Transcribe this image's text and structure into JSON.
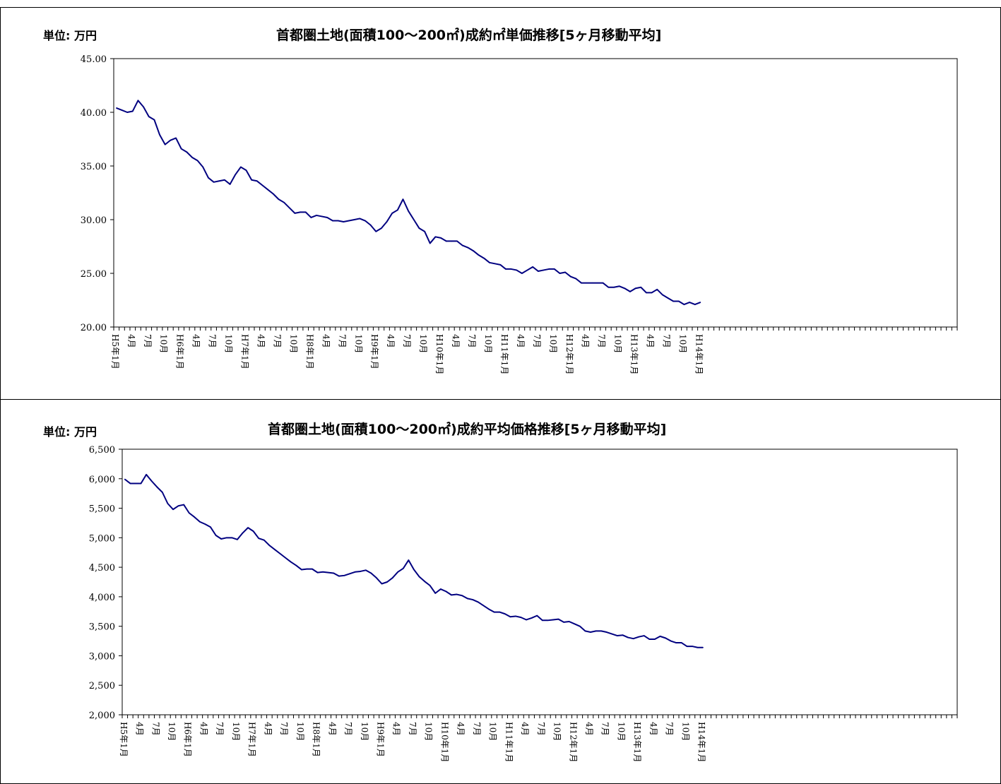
{
  "chart_data": [
    {
      "type": "line",
      "title": "首都圏土地(面積100～200㎡)成約㎡単価推移[5ヶ月移動平均]",
      "unit_label": "単位: 万円",
      "ylim": [
        20,
        45
      ],
      "yticks": [
        20,
        25,
        30,
        35,
        40,
        45
      ],
      "ytick_labels": [
        "20.00",
        "25.00",
        "30.00",
        "35.00",
        "40.00",
        "45.00"
      ],
      "x_slots": 156,
      "xtick_labels": [
        "H5年1月",
        "4月",
        "7月",
        "10月",
        "H6年1月",
        "4月",
        "7月",
        "10月",
        "H7年1月",
        "4月",
        "7月",
        "10月",
        "H8年1月",
        "4月",
        "7月",
        "10月",
        "H9年1月",
        "4月",
        "7月",
        "10月",
        "H10年1月",
        "4月",
        "7月",
        "10月",
        "H11年1月",
        "4月",
        "7月",
        "10月",
        "H12年1月",
        "4月",
        "7月",
        "10月",
        "H13年1月",
        "4月",
        "7月",
        "10月",
        "H14年1月"
      ],
      "line_color": "#000080",
      "grid": false,
      "series": [
        {
          "values": [
            40.4,
            40.2,
            40.0,
            40.1,
            41.1,
            40.5,
            39.6,
            39.3,
            37.9,
            37.0,
            37.4,
            37.6,
            36.6,
            36.3,
            35.8,
            35.5,
            34.9,
            33.9,
            33.5,
            33.6,
            33.7,
            33.3,
            34.2,
            34.9,
            34.6,
            33.7,
            33.6,
            33.2,
            32.8,
            32.4,
            31.9,
            31.6,
            31.1,
            30.6,
            30.7,
            30.7,
            30.2,
            30.4,
            30.3,
            30.2,
            29.9,
            29.9,
            29.8,
            29.9,
            30.0,
            30.1,
            29.9,
            29.5,
            28.9,
            29.2,
            29.8,
            30.6,
            30.9,
            31.9,
            30.8,
            30.0,
            29.2,
            28.9,
            27.8,
            28.4,
            28.3,
            28.0,
            28.0,
            28.0,
            27.6,
            27.4,
            27.1,
            26.7,
            26.4,
            26.0,
            25.9,
            25.8,
            25.4,
            25.4,
            25.3,
            25.0,
            25.3,
            25.6,
            25.2,
            25.3,
            25.4,
            25.4,
            25.0,
            25.1,
            24.7,
            24.5,
            24.1,
            24.1,
            24.1,
            24.1,
            24.1,
            23.7,
            23.7,
            23.8,
            23.6,
            23.3,
            23.6,
            23.7,
            23.2,
            23.2,
            23.5,
            23.0,
            22.7,
            22.4,
            22.4,
            22.1,
            22.3,
            22.1,
            22.3
          ]
        }
      ]
    },
    {
      "type": "line",
      "title": "首都圏土地(面積100～200㎡)成約平均価格推移[5ヶ月移動平均]",
      "unit_label": "単位: 万円",
      "ylim": [
        2000,
        6500
      ],
      "yticks": [
        2000,
        2500,
        3000,
        3500,
        4000,
        4500,
        5000,
        5500,
        6000,
        6500
      ],
      "ytick_labels": [
        "2,000",
        "2,500",
        "3,000",
        "3,500",
        "4,000",
        "4,500",
        "5,000",
        "5,500",
        "6,000",
        "6,500"
      ],
      "x_slots": 156,
      "xtick_labels": [
        "H5年1月",
        "4月",
        "7月",
        "10月",
        "H6年1月",
        "4月",
        "7月",
        "10月",
        "H7年1月",
        "4月",
        "7月",
        "10月",
        "H8年1月",
        "4月",
        "7月",
        "10月",
        "H9年1月",
        "4月",
        "7月",
        "10月",
        "H10年1月",
        "4月",
        "7月",
        "10月",
        "H11年1月",
        "4月",
        "7月",
        "10月",
        "H12年1月",
        "4月",
        "7月",
        "10月",
        "H13年1月",
        "4月",
        "7月",
        "10月",
        "H14年1月"
      ],
      "line_color": "#000080",
      "grid": false,
      "series": [
        {
          "values": [
            5990,
            5920,
            5920,
            5920,
            6070,
            5960,
            5860,
            5770,
            5580,
            5480,
            5540,
            5560,
            5420,
            5350,
            5270,
            5230,
            5180,
            5040,
            4980,
            5000,
            5000,
            4970,
            5080,
            5170,
            5110,
            4990,
            4960,
            4870,
            4800,
            4730,
            4660,
            4590,
            4530,
            4460,
            4470,
            4470,
            4410,
            4420,
            4410,
            4400,
            4350,
            4360,
            4390,
            4420,
            4430,
            4450,
            4400,
            4320,
            4220,
            4250,
            4320,
            4420,
            4480,
            4620,
            4460,
            4340,
            4260,
            4190,
            4060,
            4130,
            4090,
            4030,
            4040,
            4020,
            3970,
            3950,
            3910,
            3850,
            3790,
            3740,
            3740,
            3710,
            3660,
            3670,
            3650,
            3610,
            3640,
            3680,
            3600,
            3600,
            3610,
            3620,
            3570,
            3580,
            3540,
            3500,
            3420,
            3400,
            3420,
            3420,
            3400,
            3370,
            3340,
            3350,
            3310,
            3290,
            3320,
            3340,
            3280,
            3280,
            3330,
            3300,
            3250,
            3220,
            3220,
            3160,
            3160,
            3140,
            3140
          ]
        }
      ]
    }
  ]
}
